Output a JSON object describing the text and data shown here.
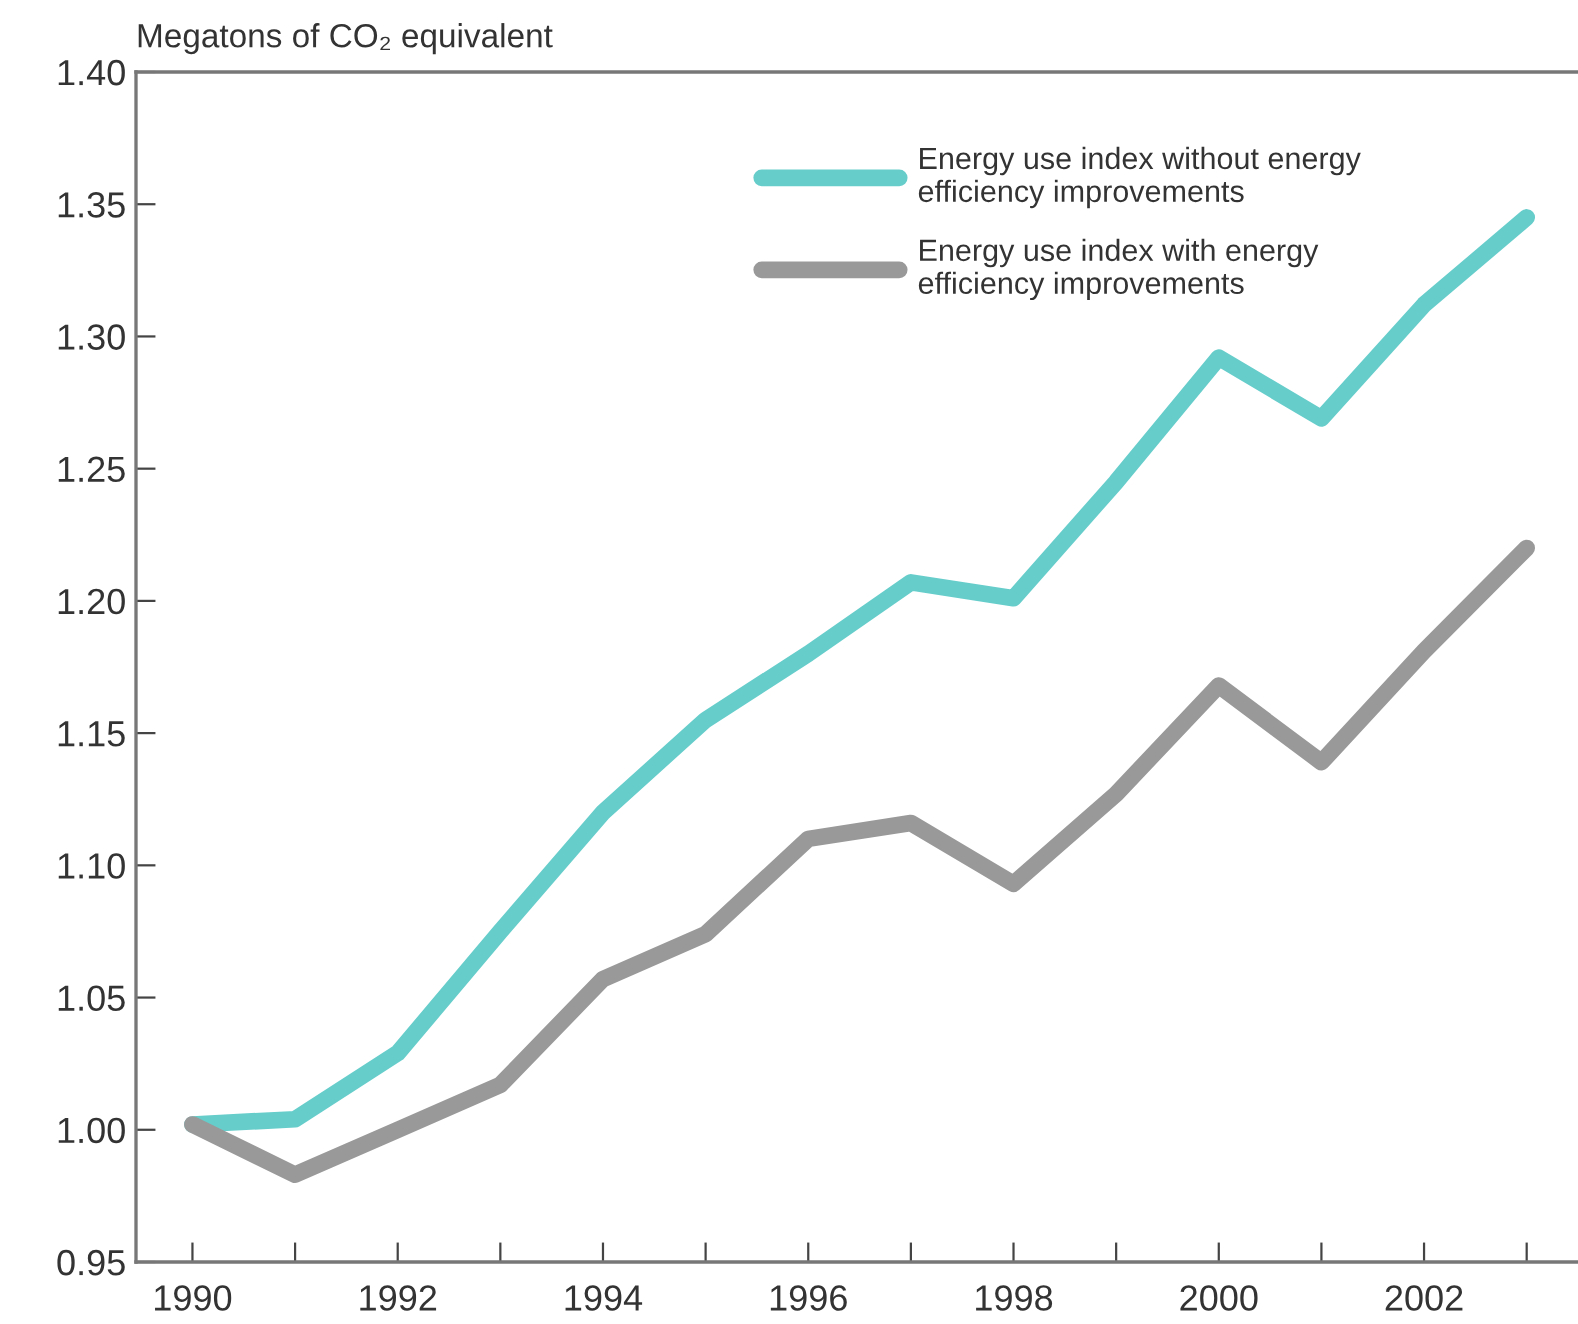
{
  "chart_data": {
    "type": "line",
    "ylabel": "Megatons of CO₂ equivalent",
    "x": [
      1990,
      1991,
      1992,
      1993,
      1994,
      1995,
      1996,
      1997,
      1998,
      1999,
      2000,
      2001,
      2002,
      2003
    ],
    "series": [
      {
        "name": "Energy use index without energy efficiency improvements",
        "color": "#66cdcb",
        "values": [
          1.002,
          1.004,
          1.029,
          1.075,
          1.12,
          1.155,
          1.18,
          1.207,
          1.201,
          1.245,
          1.292,
          1.269,
          1.312,
          1.345
        ]
      },
      {
        "name": "Energy use index with energy efficiency improvements",
        "color": "#999999",
        "values": [
          1.002,
          0.983,
          1.0,
          1.017,
          1.057,
          1.074,
          1.11,
          1.116,
          1.093,
          1.127,
          1.168,
          1.139,
          1.181,
          1.22
        ]
      }
    ],
    "xlim": [
      1989.45,
      2003.5
    ],
    "xticks": [
      1990,
      {
        "value": 1991,
        "label": null
      },
      1992,
      {
        "value": 1993,
        "label": null
      },
      1994,
      {
        "value": 1995,
        "label": null
      },
      1996,
      {
        "value": 1997,
        "label": null
      },
      1998,
      {
        "value": 1999,
        "label": null
      },
      2000,
      {
        "value": 2001,
        "label": null
      },
      2002,
      {
        "value": 2003,
        "label": null
      }
    ],
    "ylim": [
      0.95,
      1.4
    ],
    "yticks": [
      {
        "value": 0.95,
        "label": "0.95"
      },
      {
        "value": 1.0,
        "label": "1.00"
      },
      {
        "value": 1.05,
        "label": "1.05"
      },
      {
        "value": 1.1,
        "label": "1.10"
      },
      {
        "value": 1.15,
        "label": "1.15"
      },
      {
        "value": 1.2,
        "label": "1.20"
      },
      {
        "value": 1.25,
        "label": "1.25"
      },
      {
        "value": 1.3,
        "label": "1.30"
      },
      {
        "value": 1.35,
        "label": "1.35"
      },
      {
        "value": 1.4,
        "label": "1.40"
      }
    ],
    "grid": false,
    "legend": "top right",
    "marker": "none",
    "line_style": "solid"
  }
}
